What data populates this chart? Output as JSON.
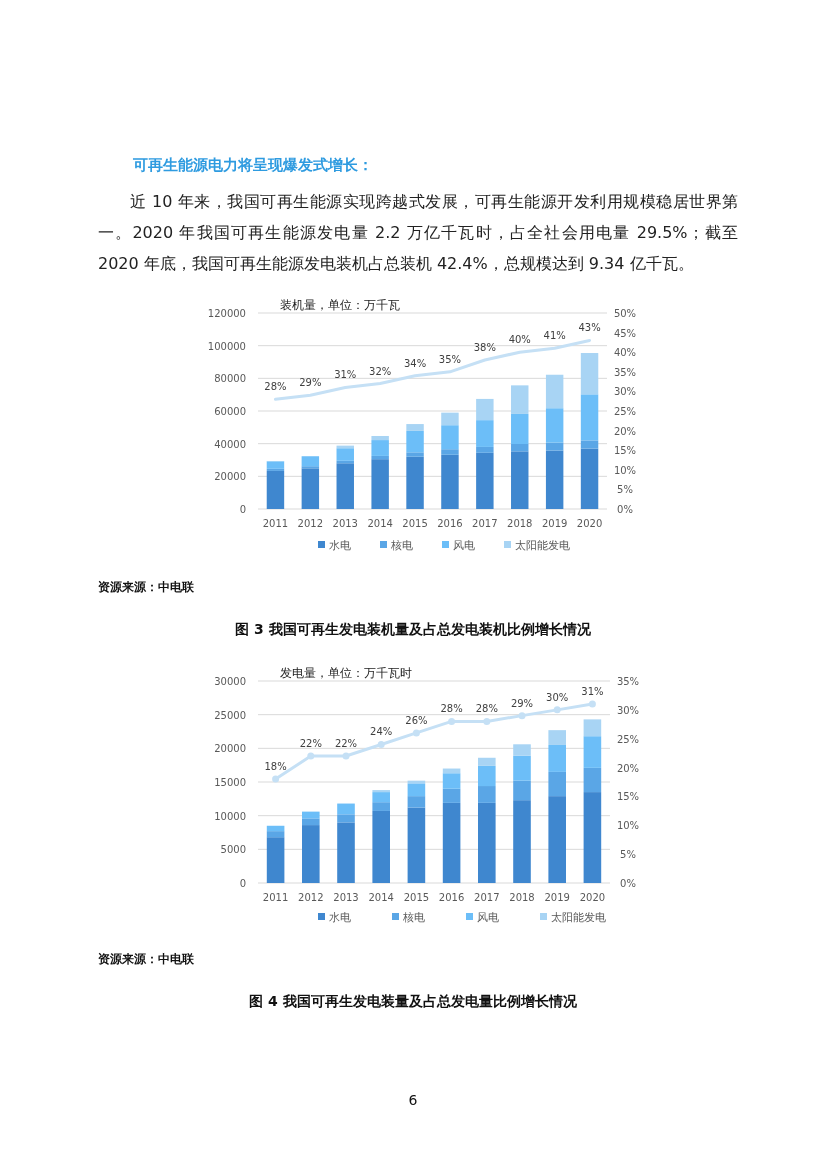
{
  "chart_data": [
    {
      "type": "bar",
      "stacked": true,
      "title": "可再生能源电力将呈现爆发式增长：",
      "subtitle": "近 10 年来，我国可再生能源实现跨越式发展，可再生能源开发利用规模稳居世界第一。2020 年我国可再生能源发电量 2.2 万亿千瓦时，占全社会用电量 29.5%；截至 2020 年底，我国可再生能源发电装机占总装机 42.4%，总规模达到 9.34 亿千瓦。",
      "ylabel": "装机量，单位：万千瓦",
      "categories": [
        "2011",
        "2012",
        "2013",
        "2014",
        "2015",
        "2016",
        "2017",
        "2018",
        "2019",
        "2020"
      ],
      "series": [
        {
          "name": "水电",
          "color": "#3f87cf",
          "values": [
            23300,
            24900,
            28000,
            30500,
            32000,
            33200,
            34400,
            35300,
            35800,
            37000
          ]
        },
        {
          "name": "核电",
          "color": "#5aa6e6",
          "values": [
            1300,
            1300,
            1500,
            2000,
            2700,
            3400,
            3600,
            4500,
            4900,
            5000
          ]
        },
        {
          "name": "风电",
          "color": "#6cbef8",
          "values": [
            4600,
            6100,
            7700,
            9700,
            13100,
            14700,
            16400,
            18400,
            21000,
            28200
          ]
        },
        {
          "name": "太阳能发电",
          "color": "#a8d4f4",
          "values": [
            200,
            null,
            1600,
            2500,
            4200,
            7700,
            13000,
            17500,
            20500,
            25300
          ]
        },
        {
          "type": "line",
          "axis": "y2",
          "color": "#c5e0f5",
          "values": [
            28,
            29,
            31,
            32,
            34,
            35,
            38,
            40,
            41,
            43
          ],
          "value_labels": [
            "28%",
            "29%",
            "31%",
            "32%",
            "34%",
            "35%",
            "38%",
            "40%",
            "41%",
            "43%"
          ]
        }
      ],
      "ylim": [
        0,
        120000
      ],
      "yticks": [
        0,
        20000,
        40000,
        60000,
        80000,
        100000,
        120000
      ],
      "y2lim": [
        0,
        50
      ],
      "y2ticks": [
        {
          "value": 0,
          "label": "0%"
        },
        {
          "value": 5,
          "label": "5%"
        },
        {
          "value": 10,
          "label": "10%"
        },
        {
          "value": 15,
          "label": "15%"
        },
        {
          "value": 20,
          "label": "20%"
        },
        {
          "value": 25,
          "label": "25%"
        },
        {
          "value": 30,
          "label": "30%"
        },
        {
          "value": 35,
          "label": "35%"
        },
        {
          "value": 40,
          "label": "40%"
        },
        {
          "value": 45,
          "label": "45%"
        },
        {
          "value": 50,
          "label": "50%"
        }
      ],
      "grid": "y",
      "legend": "bottom",
      "annotations": [
        "资源来源：中电联",
        "图 3 我国可再生发电装机量及占总发电装机比例增长情况"
      ]
    },
    {
      "type": "bar",
      "stacked": true,
      "ylabel": "发电量，单位：万千瓦时",
      "categories": [
        "2011",
        "2012",
        "2013",
        "2014",
        "2015",
        "2016",
        "2017",
        "2018",
        "2019",
        "2020"
      ],
      "series": [
        {
          "name": "水电",
          "color": "#3f87cf",
          "values": [
            6800,
            8600,
            9000,
            10700,
            11200,
            11900,
            11900,
            12300,
            12900,
            13500
          ]
        },
        {
          "name": "核电",
          "color": "#5aa6e6",
          "values": [
            900,
            1000,
            1200,
            1300,
            1700,
            2100,
            2500,
            2900,
            3600,
            3600
          ]
        },
        {
          "name": "风电",
          "color": "#6cbef8",
          "values": [
            800,
            1000,
            1600,
            1500,
            1900,
            2300,
            3000,
            3700,
            4000,
            4700
          ]
        },
        {
          "name": "太阳能发电",
          "color": "#a8d4f4",
          "values": [
            null,
            null,
            null,
            300,
            400,
            700,
            1200,
            1700,
            2200,
            2500
          ]
        },
        {
          "type": "line",
          "axis": "y2",
          "color": "#c5e0f5",
          "marker": "circle",
          "values": [
            18,
            22,
            22,
            24,
            26,
            28,
            28,
            29,
            30,
            31
          ],
          "value_labels": [
            "18%",
            "22%",
            "22%",
            "24%",
            "26%",
            "28%",
            "28%",
            "29%",
            "30%",
            "31%"
          ]
        }
      ],
      "ylim": [
        0,
        30000
      ],
      "yticks": [
        0,
        5000,
        10000,
        15000,
        20000,
        25000,
        30000
      ],
      "y2lim": [
        0,
        35
      ],
      "y2ticks": [
        {
          "value": 0,
          "label": "0%"
        },
        {
          "value": 5,
          "label": "5%"
        },
        {
          "value": 10,
          "label": "10%"
        },
        {
          "value": 15,
          "label": "15%"
        },
        {
          "value": 20,
          "label": "20%"
        },
        {
          "value": 25,
          "label": "25%"
        },
        {
          "value": 30,
          "label": "30%"
        },
        {
          "value": 35,
          "label": "35%"
        }
      ],
      "grid": "y",
      "legend": "bottom",
      "annotations": [
        "资源来源：中电联",
        "图 4 我国可再生发电装量及占总发电量比例增长情况",
        "6"
      ]
    }
  ]
}
